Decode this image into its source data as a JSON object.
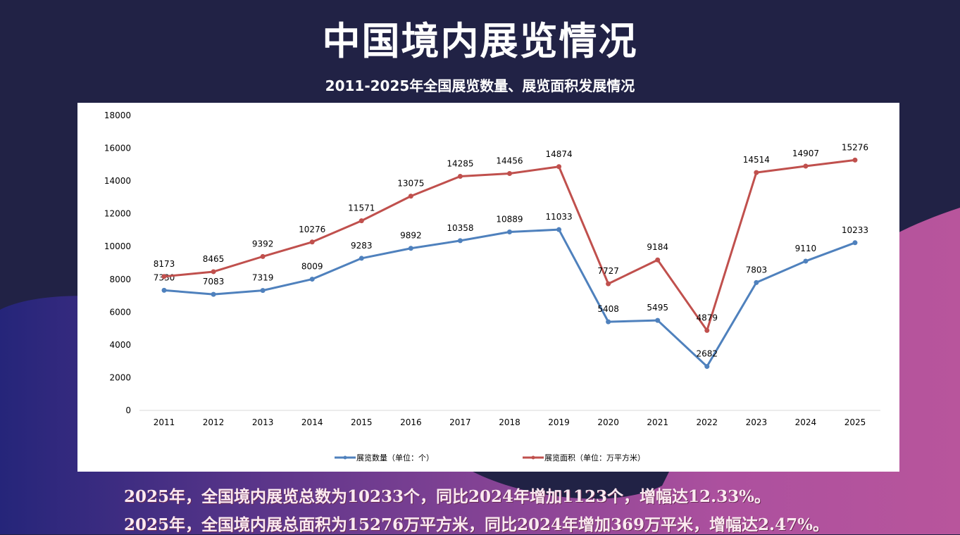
{
  "header": {
    "title": "中国境内展览情况",
    "subtitle": "2011-2025年全国展览数量、展览面积发展情况"
  },
  "colors": {
    "background": "#212245",
    "wave_left": "#2a2a7a",
    "wave_right": "#b8559c",
    "series_count": "#4f81bd",
    "series_area": "#c0504d"
  },
  "chart_data": {
    "type": "line",
    "title": "2011-2025年全国展览数量、展览面积发展情况",
    "categories": [
      "2011",
      "2012",
      "2013",
      "2014",
      "2015",
      "2016",
      "2017",
      "2018",
      "2019",
      "2020",
      "2021",
      "2022",
      "2023",
      "2024",
      "2025"
    ],
    "ylim": [
      0,
      18000
    ],
    "yticks": [
      "0",
      "2000",
      "4000",
      "6000",
      "8000",
      "10000",
      "12000",
      "14000",
      "16000",
      "18000"
    ],
    "grid": false,
    "legend": "bottom",
    "series": [
      {
        "name": "展览数量（单位：个）",
        "color": "#4f81bd",
        "values": [
          7330,
          7083,
          7319,
          8009,
          9283,
          9892,
          10358,
          10889,
          11033,
          5408,
          5495,
          2682,
          7803,
          9110,
          10233
        ]
      },
      {
        "name": "展览面积（单位：万平方米）",
        "color": "#c0504d",
        "values": [
          8173,
          8465,
          9392,
          10276,
          11571,
          13075,
          14285,
          14456,
          14874,
          7727,
          9184,
          4879,
          14514,
          14907,
          15276
        ]
      }
    ]
  },
  "notes": [
    "2025年，全国境内展览总数为10233个，同比2024年增加1123个，增幅达12.33%。",
    "2025年，全国境内展总面积为15276万平方米，同比2024年增加369万平米，增幅达2.47%。"
  ]
}
